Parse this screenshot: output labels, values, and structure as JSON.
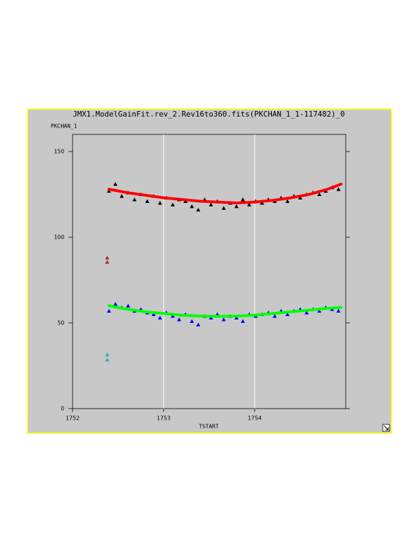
{
  "chart_data": {
    "type": "scatter",
    "title": "JMX1.ModelGainFit.rev_2.Rev16to360.fits(PKCHAN_1_1-117482)_0",
    "y_label": "PKCHAN_1",
    "x_label": "TSTART",
    "xlim": [
      1752,
      1755
    ],
    "xticks": [
      1752,
      1753,
      1754
    ],
    "ylim": [
      0,
      160
    ],
    "yticks": [
      0,
      50,
      100,
      150
    ],
    "grid": "x",
    "series": [
      {
        "mode": "markers",
        "color": "#000000",
        "x": [
          1752.4,
          1752.47,
          1752.54,
          1752.61,
          1752.68,
          1752.75,
          1752.82,
          1752.89,
          1752.96,
          1753.03,
          1753.1,
          1753.17,
          1753.24,
          1753.31,
          1753.38,
          1753.45,
          1753.52,
          1753.59,
          1753.66,
          1753.73,
          1753.8,
          1753.87,
          1753.94,
          1754.01,
          1754.08,
          1754.15,
          1754.22,
          1754.29,
          1754.36,
          1754.43,
          1754.5,
          1754.57,
          1754.64,
          1754.71,
          1754.78,
          1754.85,
          1754.92
        ],
        "values": [
          127,
          131,
          124,
          126,
          122,
          125,
          121,
          124,
          120,
          123,
          119,
          122,
          121,
          118,
          116,
          122,
          119,
          121,
          117,
          120,
          118,
          122,
          119,
          121,
          120,
          122,
          121,
          123,
          121,
          124,
          123,
          125,
          126,
          125,
          127,
          129,
          128
        ]
      },
      {
        "mode": "markers",
        "color": "#0000ff",
        "x": [
          1752.4,
          1752.47,
          1752.54,
          1752.61,
          1752.68,
          1752.75,
          1752.82,
          1752.89,
          1752.96,
          1753.03,
          1753.1,
          1753.17,
          1753.24,
          1753.31,
          1753.38,
          1753.45,
          1753.52,
          1753.59,
          1753.66,
          1753.73,
          1753.8,
          1753.87,
          1753.94,
          1754.01,
          1754.08,
          1754.15,
          1754.22,
          1754.29,
          1754.36,
          1754.43,
          1754.5,
          1754.57,
          1754.64,
          1754.71,
          1754.78,
          1754.85,
          1754.92
        ],
        "values": [
          57,
          61,
          59,
          60,
          57,
          58,
          56,
          55,
          53,
          56,
          54,
          52,
          55,
          51,
          49,
          54,
          53,
          55,
          52,
          54,
          53,
          51,
          55,
          54,
          55,
          56,
          54,
          57,
          55,
          57,
          58,
          56,
          58,
          57,
          59,
          58,
          57
        ]
      },
      {
        "mode": "line",
        "color": "#ff0000",
        "x": [
          1752.4,
          1752.6,
          1752.8,
          1753.0,
          1753.2,
          1753.4,
          1753.6,
          1753.8,
          1754.0,
          1754.2,
          1754.4,
          1754.6,
          1754.8,
          1754.95
        ],
        "values": [
          128,
          126,
          124.5,
          123,
          122,
          121,
          120.5,
          120,
          120.5,
          121.5,
          123,
          125,
          128,
          131
        ]
      },
      {
        "mode": "line",
        "color": "#00ff00",
        "x": [
          1752.4,
          1752.6,
          1752.8,
          1753.0,
          1753.2,
          1753.4,
          1753.6,
          1753.8,
          1754.0,
          1754.2,
          1754.4,
          1754.6,
          1754.8,
          1754.95
        ],
        "values": [
          60,
          58,
          56.5,
          55.5,
          54.5,
          54,
          53.8,
          54,
          54.5,
          55.5,
          56.5,
          57.5,
          58.5,
          59
        ]
      },
      {
        "mode": "markers",
        "color": "#b22222",
        "x": [
          1752.38,
          1752.38
        ],
        "values": [
          88,
          85.5
        ]
      },
      {
        "mode": "markers",
        "color": "#20b2aa",
        "x": [
          1752.38,
          1752.38
        ],
        "values": [
          31.5,
          28.5
        ]
      }
    ]
  }
}
